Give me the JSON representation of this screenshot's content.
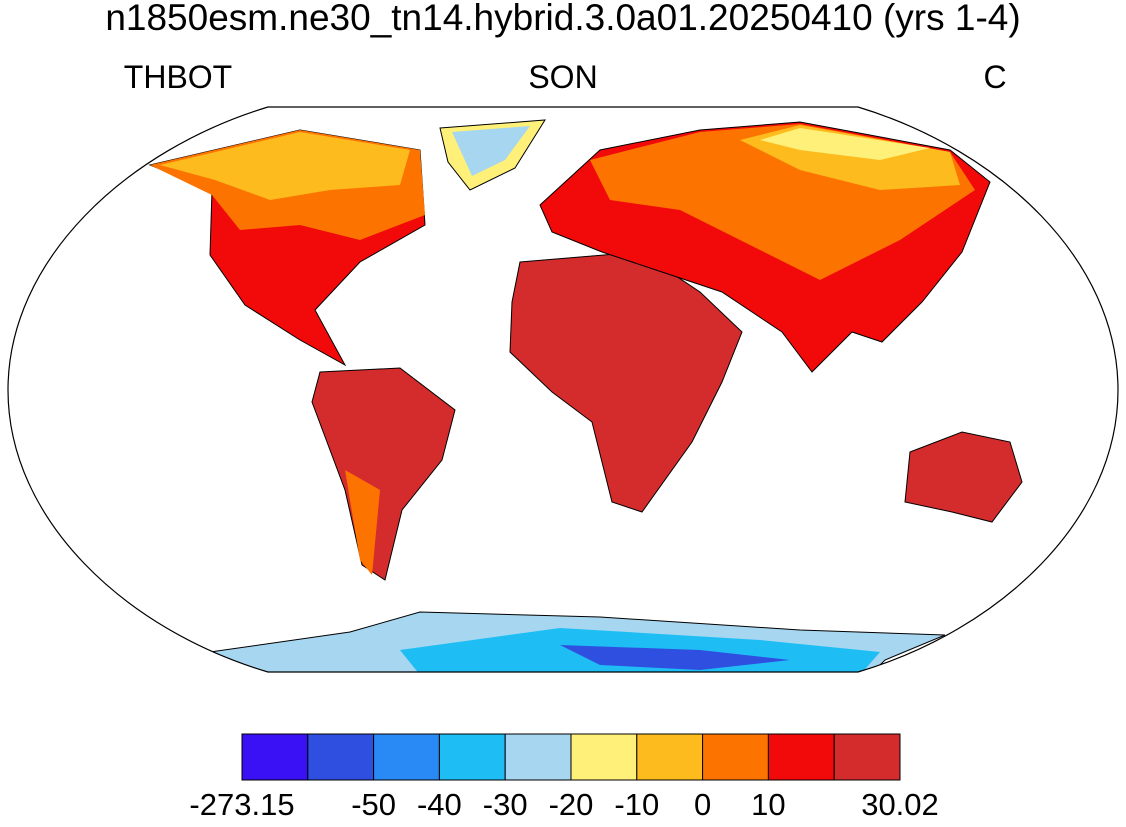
{
  "title": "n1850esm.ne30_tn14.hybrid.3.0a01.20250410 (yrs 1-4)",
  "left_label": "THBOT",
  "center_label": "SON",
  "right_label": "C",
  "colorbar": {
    "colors": [
      "#3a10f5",
      "#2f4fe0",
      "#2a8af5",
      "#1ebef5",
      "#a6d6f0",
      "#fff07a",
      "#fdbb1e",
      "#fd7300",
      "#f20a0a",
      "#d42c2c"
    ],
    "labels": [
      "-273.15",
      null,
      "-50",
      "-40",
      "-30",
      "-20",
      "-10",
      "0",
      "10",
      null,
      "30.02"
    ]
  }
}
